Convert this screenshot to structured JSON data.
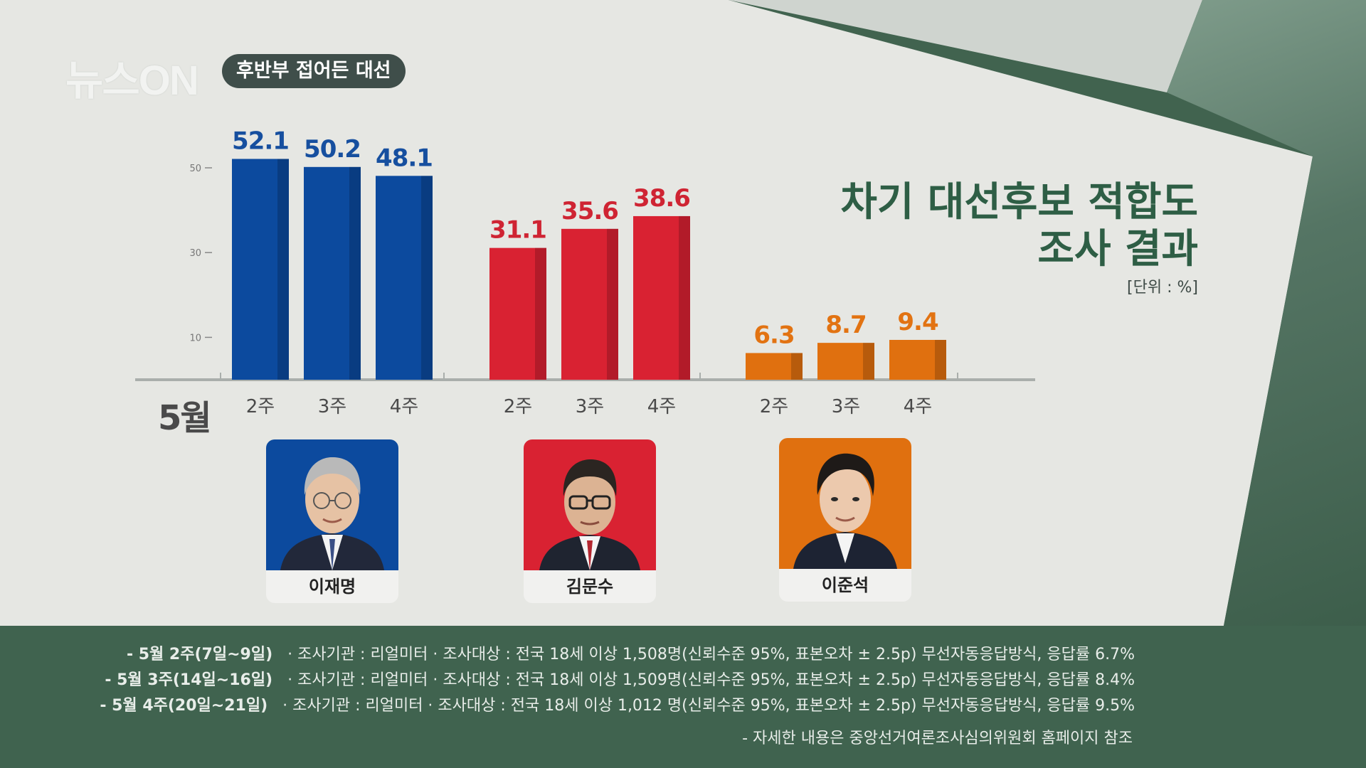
{
  "brand": {
    "logo": "뉴스ON",
    "segment": "후반부 접어든 대선"
  },
  "title_lines": [
    "차기 대선후보 적합도",
    "조사 결과"
  ],
  "unit_label": "[단위 : %]",
  "month_label": "5월",
  "candidates": [
    {
      "name": "이재명",
      "color": "#0c4a9e"
    },
    {
      "name": "김문수",
      "color": "#d92232"
    },
    {
      "name": "이준석",
      "color": "#e0700f"
    }
  ],
  "chart_data": {
    "type": "bar",
    "categories": [
      "2주",
      "3주",
      "4주"
    ],
    "series": [
      {
        "name": "이재명",
        "values": [
          52.1,
          50.2,
          48.1
        ],
        "color": "#0c4a9e"
      },
      {
        "name": "김문수",
        "values": [
          31.1,
          35.6,
          38.6
        ],
        "color": "#d92232"
      },
      {
        "name": "이준석",
        "values": [
          6.3,
          8.7,
          9.4
        ],
        "color": "#e0700f"
      }
    ],
    "yticks": [
      10,
      30,
      50
    ],
    "ylim": [
      0,
      60
    ],
    "title": "차기 대선후보 적합도 조사 결과",
    "xlabel": "5월",
    "ylabel": ""
  },
  "notes": [
    {
      "period": "- 5월 2주(7일~9일)",
      "text": "· 조사기관 : 리얼미터   · 조사대상 : 전국 18세 이상 1,508명(신뢰수준 95%, 표본오차  ± 2.5p) 무선자동응답방식, 응답률 6.7%"
    },
    {
      "period": "- 5월 3주(14일~16일)",
      "text": "· 조사기관 : 리얼미터   · 조사대상 : 전국 18세 이상 1,509명(신뢰수준 95%, 표본오차  ± 2.5p) 무선자동응답방식, 응답률 8.4%"
    },
    {
      "period": "- 5월 4주(20일~21일)",
      "text": "· 조사기관 : 리얼미터   · 조사대상 : 전국 18세 이상 1,012 명(신뢰수준 95%, 표본오차  ± 2.5p) 무선자동응답방식, 응답률 9.5%"
    }
  ],
  "source_note": "- 자세한 내용은 중앙선거여론조사심의위원회 홈페이지 참조"
}
